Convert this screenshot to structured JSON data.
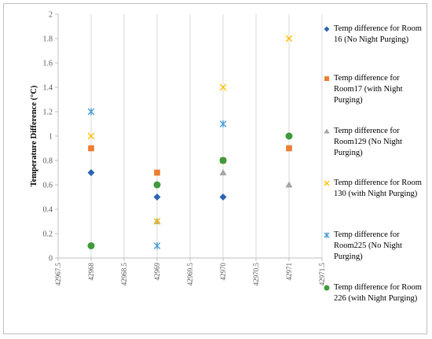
{
  "chart_data": {
    "type": "scatter",
    "title": "",
    "xlabel": "",
    "ylabel": "Temperature Difference (°C)",
    "xlim": [
      42967.5,
      42971.5
    ],
    "ylim": [
      0,
      2
    ],
    "xticks": [
      "42967.5",
      "42968",
      "42968.5",
      "42969",
      "42969.5",
      "42970",
      "42970.5",
      "42971",
      "42971.5"
    ],
    "yticks": [
      "0",
      "0.2",
      "0.4",
      "0.6",
      "0.8",
      "1",
      "1.2",
      "1.4",
      "1.6",
      "1.8",
      "2"
    ],
    "grid": "vertical",
    "legend_position": "right",
    "series": [
      {
        "name": "Temp difference  for Room 16 (No Night Purging)",
        "marker": "diamond",
        "color": "#2e64b2",
        "x": [
          42968,
          42969,
          42970
        ],
        "y": [
          0.7,
          0.5,
          0.5
        ]
      },
      {
        "name": "Temp difference  for Room17 (with Night Purging)",
        "marker": "square",
        "color": "#ed7d31",
        "x": [
          42968,
          42969,
          42970,
          42971
        ],
        "y": [
          0.9,
          0.7,
          0.8,
          0.9
        ]
      },
      {
        "name": "Temp difference for Room129 (No Night Purging)",
        "marker": "triangle",
        "color": "#a5a5a5",
        "x": [
          42969,
          42970,
          42971
        ],
        "y": [
          0.3,
          0.7,
          0.6
        ]
      },
      {
        "name": "Temp difference  for Room 130 (with Night Purging)",
        "marker": "x",
        "color": "#ffc000",
        "x": [
          42968,
          42969,
          42970,
          42971
        ],
        "y": [
          1.0,
          0.3,
          1.4,
          1.8
        ]
      },
      {
        "name": "Temp difference for Room225 (No Night Purging)",
        "marker": "star",
        "color": "#4a9fd8",
        "x": [
          42968,
          42969,
          42970
        ],
        "y": [
          1.2,
          0.1,
          1.1
        ]
      },
      {
        "name": "Temp difference  for Room 226 (with Night Purging)",
        "marker": "circle",
        "color": "#3f9a3c",
        "x": [
          42968,
          42969,
          42970,
          42971
        ],
        "y": [
          0.1,
          0.6,
          0.8,
          1.0
        ]
      }
    ]
  }
}
